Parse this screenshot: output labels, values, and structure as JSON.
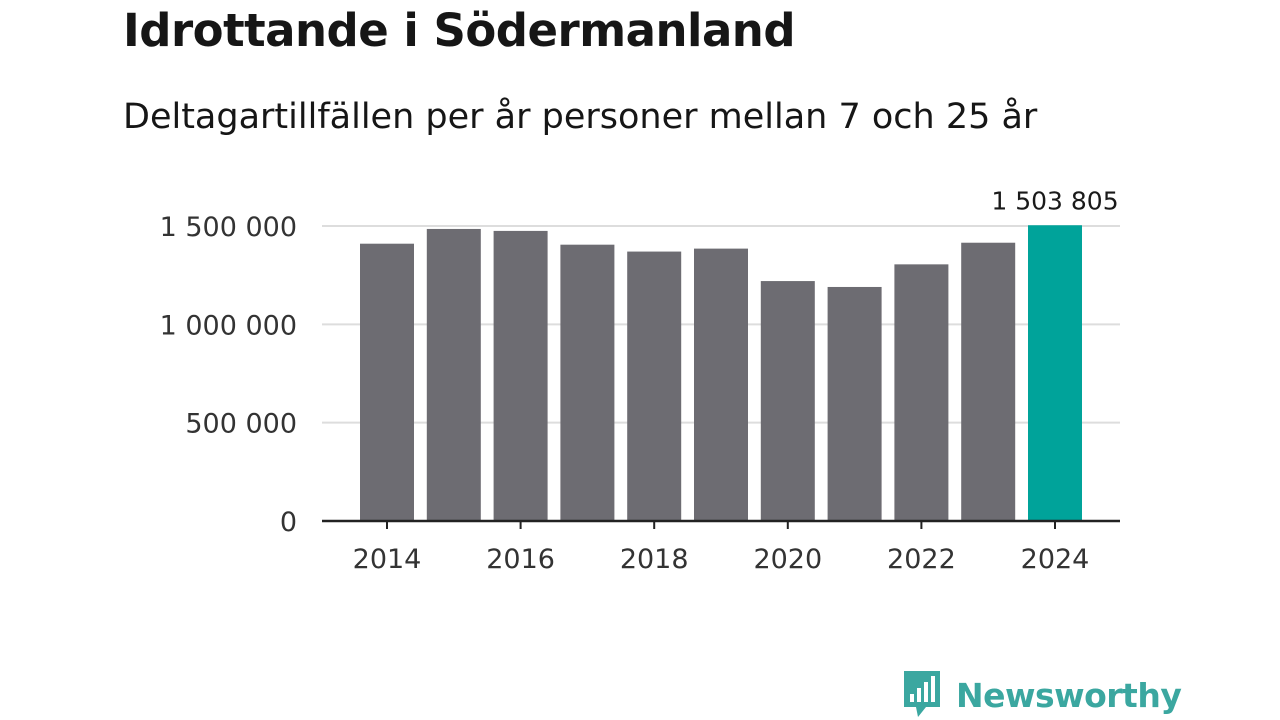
{
  "header": {
    "title": "Idrottande i Södermanland",
    "subtitle": "Deltagartillfällen per år personer mellan 7 och 25 år"
  },
  "colors": {
    "bar": "#6d6c72",
    "highlight": "#00a39a",
    "grid": "#dddddd",
    "axis": "#222222",
    "brand": "#3ba7a0"
  },
  "brand": {
    "name": "Newsworthy",
    "icon": "newsworthy-logo-icon"
  },
  "chart_data": {
    "type": "bar",
    "title": "Idrottande i Södermanland",
    "subtitle": "Deltagartillfällen per år personer mellan 7 och 25 år",
    "xlabel": "",
    "ylabel": "",
    "categories": [
      "2014",
      "2015",
      "2016",
      "2017",
      "2018",
      "2019",
      "2020",
      "2021",
      "2022",
      "2023",
      "2024"
    ],
    "values": [
      1410000,
      1485000,
      1475000,
      1405000,
      1370000,
      1385000,
      1220000,
      1190000,
      1305000,
      1415000,
      1503805
    ],
    "highlight_index": 10,
    "highlight_label": "1 503 805",
    "ylim": [
      0,
      1500000
    ],
    "yticks": [
      0,
      500000,
      1000000,
      1500000
    ],
    "ytick_labels": [
      "0",
      "500 000",
      "1 000 000",
      "1 500 000"
    ],
    "xtick_labels": [
      "2014",
      "2016",
      "2018",
      "2020",
      "2022",
      "2024"
    ],
    "grid": true,
    "legend": "none"
  }
}
